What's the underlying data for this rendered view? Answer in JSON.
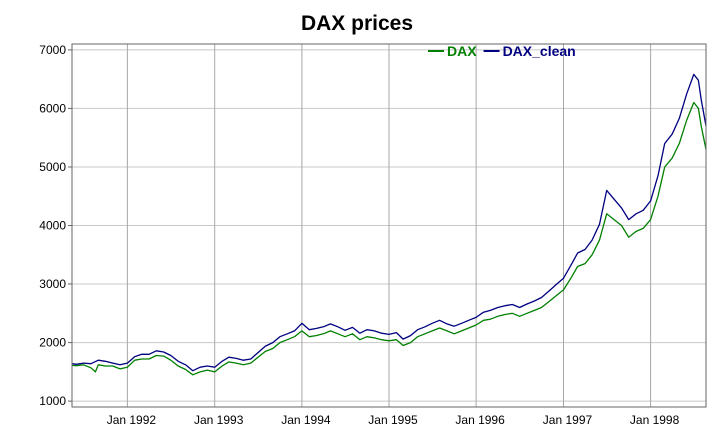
{
  "chart_data": {
    "type": "line",
    "title": "DAX prices",
    "xlabel": "",
    "ylabel": "",
    "x_range": [
      "1991-05-14",
      "1998-08-21"
    ],
    "ylim": [
      900,
      7100
    ],
    "y_ticks": [
      1000,
      2000,
      3000,
      4000,
      5000,
      6000,
      7000
    ],
    "x_ticks": [
      {
        "date": "1992-01-01",
        "label": "Jan 1992"
      },
      {
        "date": "1993-01-01",
        "label": "Jan 1993"
      },
      {
        "date": "1994-01-01",
        "label": "Jan 1994"
      },
      {
        "date": "1995-01-01",
        "label": "Jan 1995"
      },
      {
        "date": "1996-01-01",
        "label": "Jan 1996"
      },
      {
        "date": "1997-01-01",
        "label": "Jan 1997"
      },
      {
        "date": "1998-01-01",
        "label": "Jan 1998"
      }
    ],
    "grid": true,
    "legend_position": "top-right",
    "series": [
      {
        "name": "DAX",
        "color": "#008000",
        "points": [
          [
            "1991-05-14",
            1610
          ],
          [
            "1991-06-01",
            1605
          ],
          [
            "1991-07-01",
            1620
          ],
          [
            "1991-08-01",
            1570
          ],
          [
            "1991-08-20",
            1500
          ],
          [
            "1991-09-01",
            1620
          ],
          [
            "1991-10-01",
            1600
          ],
          [
            "1991-11-01",
            1600
          ],
          [
            "1991-12-01",
            1550
          ],
          [
            "1992-01-01",
            1580
          ],
          [
            "1992-02-01",
            1700
          ],
          [
            "1992-03-01",
            1720
          ],
          [
            "1992-04-01",
            1720
          ],
          [
            "1992-05-01",
            1780
          ],
          [
            "1992-06-01",
            1770
          ],
          [
            "1992-07-01",
            1700
          ],
          [
            "1992-08-01",
            1600
          ],
          [
            "1992-09-01",
            1540
          ],
          [
            "1992-10-01",
            1450
          ],
          [
            "1992-11-01",
            1500
          ],
          [
            "1992-12-01",
            1530
          ],
          [
            "1993-01-01",
            1500
          ],
          [
            "1993-02-01",
            1600
          ],
          [
            "1993-03-01",
            1670
          ],
          [
            "1993-04-01",
            1650
          ],
          [
            "1993-05-01",
            1620
          ],
          [
            "1993-06-01",
            1650
          ],
          [
            "1993-07-01",
            1750
          ],
          [
            "1993-08-01",
            1850
          ],
          [
            "1993-09-01",
            1900
          ],
          [
            "1993-10-01",
            2000
          ],
          [
            "1993-11-01",
            2050
          ],
          [
            "1993-12-01",
            2100
          ],
          [
            "1994-01-01",
            2200
          ],
          [
            "1994-02-01",
            2100
          ],
          [
            "1994-03-01",
            2120
          ],
          [
            "1994-04-01",
            2150
          ],
          [
            "1994-05-01",
            2200
          ],
          [
            "1994-06-01",
            2150
          ],
          [
            "1994-07-01",
            2100
          ],
          [
            "1994-08-01",
            2150
          ],
          [
            "1994-09-01",
            2050
          ],
          [
            "1994-10-01",
            2100
          ],
          [
            "1994-11-01",
            2080
          ],
          [
            "1994-12-01",
            2050
          ],
          [
            "1995-01-01",
            2030
          ],
          [
            "1995-02-01",
            2050
          ],
          [
            "1995-03-01",
            1950
          ],
          [
            "1995-04-01",
            2000
          ],
          [
            "1995-05-01",
            2100
          ],
          [
            "1995-06-01",
            2150
          ],
          [
            "1995-07-01",
            2200
          ],
          [
            "1995-08-01",
            2250
          ],
          [
            "1995-09-01",
            2200
          ],
          [
            "1995-10-01",
            2150
          ],
          [
            "1995-11-01",
            2200
          ],
          [
            "1995-12-01",
            2250
          ],
          [
            "1996-01-01",
            2300
          ],
          [
            "1996-02-01",
            2380
          ],
          [
            "1996-03-01",
            2400
          ],
          [
            "1996-04-01",
            2450
          ],
          [
            "1996-05-01",
            2480
          ],
          [
            "1996-06-01",
            2500
          ],
          [
            "1996-07-01",
            2450
          ],
          [
            "1996-08-01",
            2500
          ],
          [
            "1996-09-01",
            2550
          ],
          [
            "1996-10-01",
            2600
          ],
          [
            "1996-11-01",
            2700
          ],
          [
            "1996-12-01",
            2800
          ],
          [
            "1997-01-01",
            2900
          ],
          [
            "1997-02-01",
            3100
          ],
          [
            "1997-03-01",
            3300
          ],
          [
            "1997-04-01",
            3350
          ],
          [
            "1997-05-01",
            3500
          ],
          [
            "1997-06-01",
            3750
          ],
          [
            "1997-07-01",
            4200
          ],
          [
            "1997-08-01",
            4100
          ],
          [
            "1997-09-01",
            4000
          ],
          [
            "1997-10-01",
            3800
          ],
          [
            "1997-11-01",
            3900
          ],
          [
            "1997-12-01",
            3950
          ],
          [
            "1998-01-01",
            4100
          ],
          [
            "1998-02-01",
            4500
          ],
          [
            "1998-03-01",
            5000
          ],
          [
            "1998-04-01",
            5150
          ],
          [
            "1998-05-01",
            5400
          ],
          [
            "1998-06-01",
            5800
          ],
          [
            "1998-07-01",
            6100
          ],
          [
            "1998-07-20",
            6000
          ],
          [
            "1998-08-01",
            5700
          ],
          [
            "1998-08-21",
            5300
          ]
        ]
      },
      {
        "name": "DAX_clean",
        "color": "#000080",
        "points": [
          [
            "1991-05-14",
            1640
          ],
          [
            "1991-06-01",
            1630
          ],
          [
            "1991-07-01",
            1650
          ],
          [
            "1991-08-01",
            1640
          ],
          [
            "1991-09-01",
            1700
          ],
          [
            "1991-10-01",
            1680
          ],
          [
            "1991-11-01",
            1650
          ],
          [
            "1991-12-01",
            1620
          ],
          [
            "1992-01-01",
            1650
          ],
          [
            "1992-02-01",
            1760
          ],
          [
            "1992-03-01",
            1800
          ],
          [
            "1992-04-01",
            1800
          ],
          [
            "1992-05-01",
            1860
          ],
          [
            "1992-06-01",
            1840
          ],
          [
            "1992-07-01",
            1780
          ],
          [
            "1992-08-01",
            1680
          ],
          [
            "1992-09-01",
            1620
          ],
          [
            "1992-10-01",
            1520
          ],
          [
            "1992-11-01",
            1580
          ],
          [
            "1992-12-01",
            1600
          ],
          [
            "1993-01-01",
            1580
          ],
          [
            "1993-02-01",
            1680
          ],
          [
            "1993-03-01",
            1750
          ],
          [
            "1993-04-01",
            1730
          ],
          [
            "1993-05-01",
            1700
          ],
          [
            "1993-06-01",
            1720
          ],
          [
            "1993-07-01",
            1830
          ],
          [
            "1993-08-01",
            1940
          ],
          [
            "1993-09-01",
            2000
          ],
          [
            "1993-10-01",
            2100
          ],
          [
            "1993-11-01",
            2150
          ],
          [
            "1993-12-01",
            2200
          ],
          [
            "1994-01-01",
            2330
          ],
          [
            "1994-02-01",
            2220
          ],
          [
            "1994-03-01",
            2240
          ],
          [
            "1994-04-01",
            2270
          ],
          [
            "1994-05-01",
            2320
          ],
          [
            "1994-06-01",
            2270
          ],
          [
            "1994-07-01",
            2210
          ],
          [
            "1994-08-01",
            2260
          ],
          [
            "1994-09-01",
            2160
          ],
          [
            "1994-10-01",
            2220
          ],
          [
            "1994-11-01",
            2200
          ],
          [
            "1994-12-01",
            2160
          ],
          [
            "1995-01-01",
            2140
          ],
          [
            "1995-02-01",
            2170
          ],
          [
            "1995-03-01",
            2060
          ],
          [
            "1995-04-01",
            2120
          ],
          [
            "1995-05-01",
            2220
          ],
          [
            "1995-06-01",
            2270
          ],
          [
            "1995-07-01",
            2330
          ],
          [
            "1995-08-01",
            2380
          ],
          [
            "1995-09-01",
            2320
          ],
          [
            "1995-10-01",
            2280
          ],
          [
            "1995-11-01",
            2330
          ],
          [
            "1995-12-01",
            2380
          ],
          [
            "1996-01-01",
            2430
          ],
          [
            "1996-02-01",
            2520
          ],
          [
            "1996-03-01",
            2550
          ],
          [
            "1996-04-01",
            2600
          ],
          [
            "1996-05-01",
            2630
          ],
          [
            "1996-06-01",
            2650
          ],
          [
            "1996-07-01",
            2600
          ],
          [
            "1996-08-01",
            2660
          ],
          [
            "1996-09-01",
            2710
          ],
          [
            "1996-10-01",
            2770
          ],
          [
            "1996-11-01",
            2880
          ],
          [
            "1996-12-01",
            2990
          ],
          [
            "1997-01-01",
            3100
          ],
          [
            "1997-02-01",
            3320
          ],
          [
            "1997-03-01",
            3530
          ],
          [
            "1997-04-01",
            3590
          ],
          [
            "1997-05-01",
            3750
          ],
          [
            "1997-06-01",
            4020
          ],
          [
            "1997-07-01",
            4600
          ],
          [
            "1997-08-01",
            4450
          ],
          [
            "1997-09-01",
            4300
          ],
          [
            "1997-10-01",
            4100
          ],
          [
            "1997-11-01",
            4200
          ],
          [
            "1997-12-01",
            4260
          ],
          [
            "1998-01-01",
            4420
          ],
          [
            "1998-02-01",
            4850
          ],
          [
            "1998-03-01",
            5400
          ],
          [
            "1998-04-01",
            5560
          ],
          [
            "1998-05-01",
            5830
          ],
          [
            "1998-06-01",
            6250
          ],
          [
            "1998-07-01",
            6580
          ],
          [
            "1998-07-20",
            6480
          ],
          [
            "1998-08-01",
            6150
          ],
          [
            "1998-08-21",
            5700
          ]
        ]
      }
    ]
  }
}
